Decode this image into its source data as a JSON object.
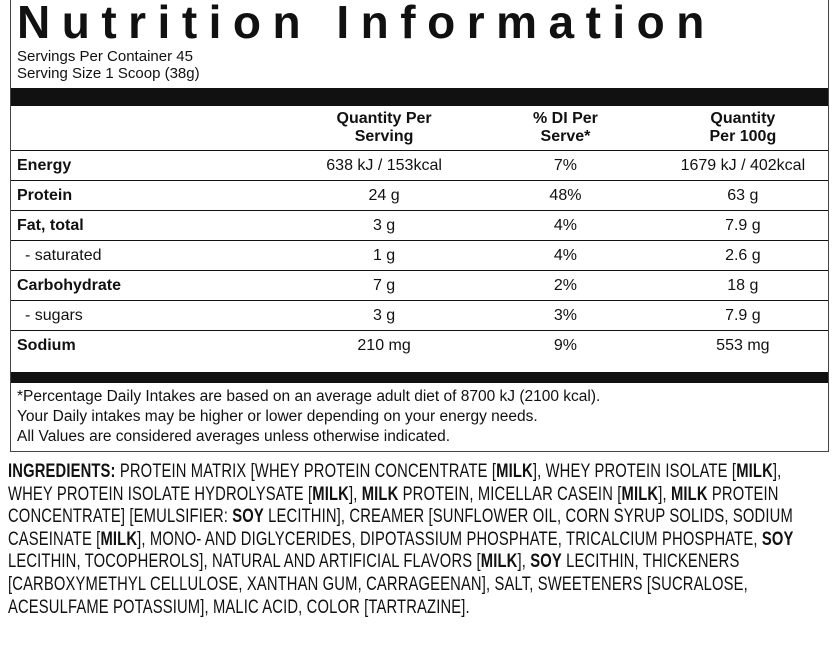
{
  "header": {
    "title": "Nutrition Information",
    "servings_per_container": "Servings Per Container 45",
    "serving_size": "Serving Size 1 Scoop (38g)"
  },
  "table": {
    "columns": [
      "Quantity Per Serving",
      "% DI Per Serve*",
      "Quantity Per 100g"
    ],
    "rows": [
      [
        "Energy",
        "638 kJ / 153kcal",
        "7%",
        "1679 kJ / 402kcal"
      ],
      [
        "Protein",
        "24 g",
        "48%",
        "63 g"
      ],
      [
        "Fat, total",
        "3 g",
        "4%",
        "7.9 g"
      ],
      [
        "- saturated",
        "1 g",
        "4%",
        "2.6 g"
      ],
      [
        "Carbohydrate",
        "7 g",
        "2%",
        "18 g"
      ],
      [
        "- sugars",
        "3 g",
        "3%",
        "7.9 g"
      ],
      [
        "Sodium",
        "210 mg",
        "9%",
        "553 mg"
      ]
    ]
  },
  "footnotes": [
    "*Percentage Daily Intakes are based on an average adult diet of 8700 kJ (2100 kcal).",
    "Your Daily intakes may be higher or lower depending on your energy needs.",
    "All Values are considered averages unless otherwise indicated."
  ],
  "ingredients": [
    {
      "text": "INGREDIENTS:",
      "bold": true
    },
    {
      "text": " PROTEIN MATRIX [WHEY PROTEIN CONCENTRATE [",
      "bold": false
    },
    {
      "text": "MILK",
      "bold": true
    },
    {
      "text": "], WHEY PROTEIN ISOLATE [",
      "bold": false
    },
    {
      "text": "MILK",
      "bold": true
    },
    {
      "text": "], WHEY PROTEIN ISOLATE HYDROLYSATE [",
      "bold": false
    },
    {
      "text": "MILK",
      "bold": true
    },
    {
      "text": "], ",
      "bold": false
    },
    {
      "text": "MILK",
      "bold": true
    },
    {
      "text": " PROTEIN, MICELLAR CASEIN [",
      "bold": false
    },
    {
      "text": "MILK",
      "bold": true
    },
    {
      "text": "], ",
      "bold": false
    },
    {
      "text": "MILK",
      "bold": true
    },
    {
      "text": " PROTEIN CONCENTRATE] [EMULSIFIER: ",
      "bold": false
    },
    {
      "text": "SOY",
      "bold": true
    },
    {
      "text": " LECITHIN], CREAMER [SUNFLOWER OIL, CORN SYRUP SOLIDS, SODIUM CASEINATE [",
      "bold": false
    },
    {
      "text": "MILK",
      "bold": true
    },
    {
      "text": "], MONO- AND DIGLYCERIDES, DIPOTASSIUM PHOSPHATE, TRICALCIUM PHOSPHATE, ",
      "bold": false
    },
    {
      "text": "SOY",
      "bold": true
    },
    {
      "text": " LECITHIN, TOCOPHEROLS], NATURAL AND ARTIFICIAL FLAVORS [",
      "bold": false
    },
    {
      "text": "MILK",
      "bold": true
    },
    {
      "text": "], ",
      "bold": false
    },
    {
      "text": "SOY",
      "bold": true
    },
    {
      "text": " LECITHIN, THICKENERS [CARBOXYMETHYL CELLULOSE, XANTHAN GUM, CARRAGEENAN], SALT, SWEETENERS [SUCRALOSE, ACESULFAME POTASSIUM], MALIC ACID, COLOR [TARTRAZINE].",
      "bold": false
    }
  ]
}
